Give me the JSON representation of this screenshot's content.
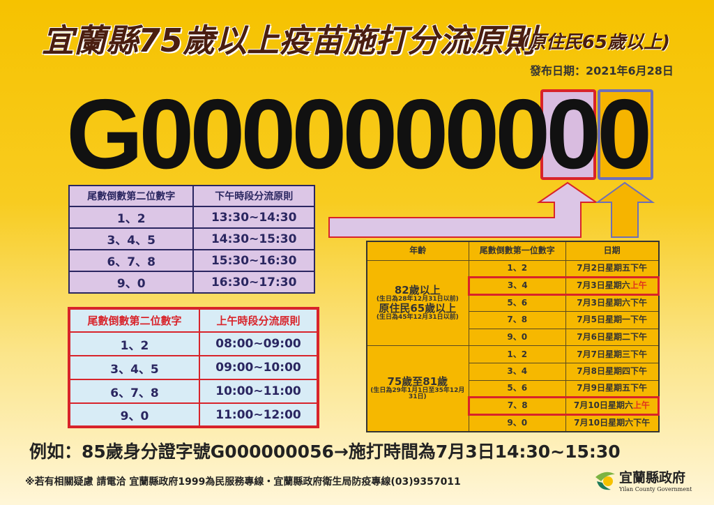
{
  "header": {
    "title": "宜蘭縣75歲以上疫苗施打分流原則",
    "subtitle": "(原住民65歲以上)",
    "date": "發布日期：2021年6月28日"
  },
  "id_example": "G0000000000",
  "afternoon_table": {
    "headers": [
      "尾數倒數第二位數字",
      "下午時段分流原則"
    ],
    "rows": [
      [
        "1、2",
        "13:30~14:30"
      ],
      [
        "3、4、5",
        "14:30~15:30"
      ],
      [
        "6、7、8",
        "15:30~16:30"
      ],
      [
        "9、0",
        "16:30~17:30"
      ]
    ]
  },
  "morning_table": {
    "headers": [
      "尾數倒數第二位數字",
      "上午時段分流原則"
    ],
    "rows": [
      [
        "1、2",
        "08:00~09:00"
      ],
      [
        "3、4、5",
        "09:00~10:00"
      ],
      [
        "6、7、8",
        "10:00~11:00"
      ],
      [
        "9、0",
        "11:00~12:00"
      ]
    ]
  },
  "schedule_table": {
    "headers": [
      "年齡",
      "尾數倒數第一位數字",
      "日期"
    ],
    "group1": {
      "age1": "82歲以上",
      "note1": "(生日為28年12月31日以前)",
      "age2": "原住民65歲以上",
      "note2": "(生日為45年12月31日以前)"
    },
    "group2": {
      "age": "75歲至81歲",
      "note": "(生日為29年1月1日至35年12月31日)"
    },
    "rows": [
      {
        "digits": "1、2",
        "date": "7月2日星期五",
        "period": "下午",
        "highlight": false
      },
      {
        "digits": "3、4",
        "date": "7月3日星期六",
        "period": "上午",
        "highlight": true
      },
      {
        "digits": "5、6",
        "date": "7月3日星期六",
        "period": "下午",
        "highlight": false
      },
      {
        "digits": "7、8",
        "date": "7月5日星期一",
        "period": "下午",
        "highlight": false
      },
      {
        "digits": "9、0",
        "date": "7月6日星期二",
        "period": "下午",
        "highlight": false
      },
      {
        "digits": "1、2",
        "date": "7月7日星期三",
        "period": "下午",
        "highlight": false
      },
      {
        "digits": "3、4",
        "date": "7月8日星期四",
        "period": "下午",
        "highlight": false
      },
      {
        "digits": "5、6",
        "date": "7月9日星期五",
        "period": "下午",
        "highlight": false
      },
      {
        "digits": "7、8",
        "date": "7月10日星期六",
        "period": "上午",
        "highlight": true
      },
      {
        "digits": "9、0",
        "date": "7月10日星期六",
        "period": "下午",
        "highlight": false
      }
    ]
  },
  "example": "例如：85歲身分證字號G000000056→施打時間為7月3日14:30~15:30",
  "footer": "※若有相關疑慮 請電洽  宜蘭縣政府1999為民服務專線・宜蘭縣政府衛生局防疫專線(03)9357011",
  "logo": {
    "name": "宜蘭縣政府",
    "english": "Yilan County Government"
  },
  "colors": {
    "background": "#f6c200",
    "title": "#4a1e10",
    "red": "#d8232a",
    "purple": "#dcc6e6",
    "blue": "#d8ecf6",
    "navy": "#2a2660",
    "orange": "#f6b800"
  }
}
